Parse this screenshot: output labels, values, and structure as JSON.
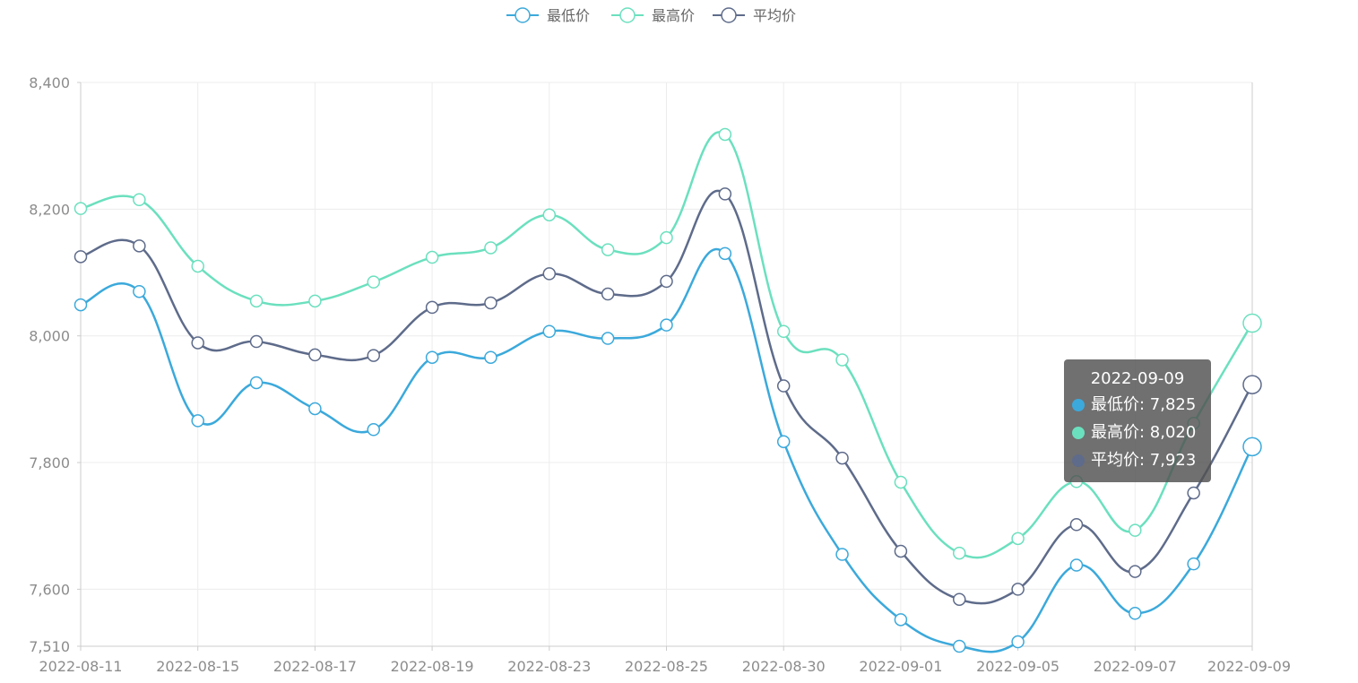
{
  "chart_data": {
    "type": "line",
    "smooth": true,
    "x_ticks": [
      "2022-08-11",
      "2022-08-15",
      "2022-08-17",
      "2022-08-19",
      "2022-08-23",
      "2022-08-25",
      "2022-08-30",
      "2022-09-01",
      "2022-09-05",
      "2022-09-07",
      "2022-09-09"
    ],
    "point_count": 21,
    "ylim": [
      7510,
      8400
    ],
    "y_ticks": [
      "8,400",
      "8,200",
      "8,000",
      "7,800",
      "7,600",
      "7,510"
    ],
    "y_tick_values": [
      8400,
      8200,
      8000,
      7800,
      7600,
      7510
    ],
    "grid": true,
    "legend_position": "top-center",
    "series": [
      {
        "name": "最低价",
        "color": "#3ba9db",
        "values": [
          8049,
          8070,
          7866,
          7926,
          7885,
          7852,
          7966,
          7966,
          8007,
          7996,
          8017,
          8130,
          7833,
          7655,
          7552,
          7510,
          7517,
          7638,
          7562,
          7640,
          7825
        ]
      },
      {
        "name": "最高价",
        "color": "#6be0be",
        "values": [
          8201,
          8215,
          8110,
          8055,
          8055,
          8085,
          8124,
          8139,
          8191,
          8136,
          8155,
          8318,
          8007,
          7962,
          7769,
          7657,
          7680,
          7770,
          7693,
          7862,
          8020
        ]
      },
      {
        "name": "平均价",
        "color": "#5e6b8a",
        "values": [
          8125,
          8142,
          7989,
          7991,
          7970,
          7969,
          8045,
          8052,
          8098,
          8066,
          8086,
          8224,
          7921,
          7807,
          7660,
          7584,
          7600,
          7702,
          7628,
          7752,
          7923
        ]
      }
    ]
  },
  "tooltip": {
    "title": "2022-09-09",
    "rows": [
      "最低价: 7,825",
      "最高价: 8,020",
      "平均价: 7,923"
    ]
  }
}
